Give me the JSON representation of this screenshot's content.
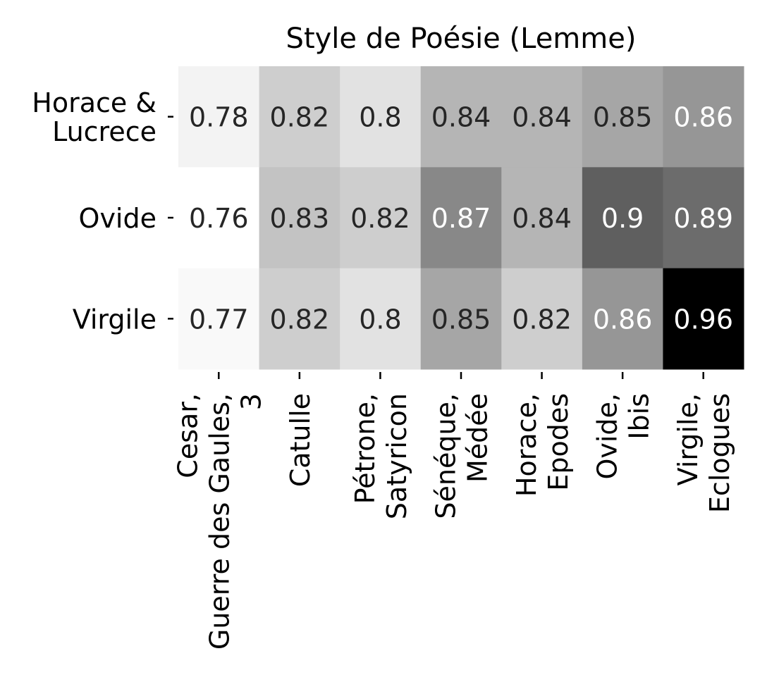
{
  "chart_data": {
    "type": "heatmap",
    "title": "Style de Poésie (Lemme)",
    "xlabel": "",
    "ylabel": "",
    "rows": [
      [
        "Horace &",
        "Lucrece"
      ],
      [
        "Ovide"
      ],
      [
        "Virgile"
      ]
    ],
    "columns": [
      [
        "Cesar,",
        "Guerre des Gaules,",
        "3"
      ],
      [
        "Catulle"
      ],
      [
        "Pétrone,",
        "Satyricon"
      ],
      [
        "Sénéque,",
        "Médée"
      ],
      [
        "Horace,",
        "Epodes"
      ],
      [
        "Ovide,",
        "Ibis"
      ],
      [
        "Virgile,",
        "Eclogues"
      ]
    ],
    "values": [
      [
        0.78,
        0.82,
        0.8,
        0.84,
        0.84,
        0.85,
        0.86
      ],
      [
        0.76,
        0.83,
        0.82,
        0.87,
        0.84,
        0.9,
        0.89
      ],
      [
        0.77,
        0.82,
        0.8,
        0.85,
        0.82,
        0.86,
        0.96
      ]
    ],
    "annotations": [
      [
        "0.78",
        "0.82",
        "0.8",
        "0.84",
        "0.84",
        "0.85",
        "0.86"
      ],
      [
        "0.76",
        "0.83",
        "0.82",
        "0.87",
        "0.84",
        "0.9",
        "0.89"
      ],
      [
        "0.77",
        "0.82",
        "0.8",
        "0.85",
        "0.82",
        "0.86",
        "0.96"
      ]
    ],
    "colormap": "Greys",
    "colorbar": false,
    "text_colors": {
      "dark": "#262626",
      "light": "#ffffff"
    }
  }
}
